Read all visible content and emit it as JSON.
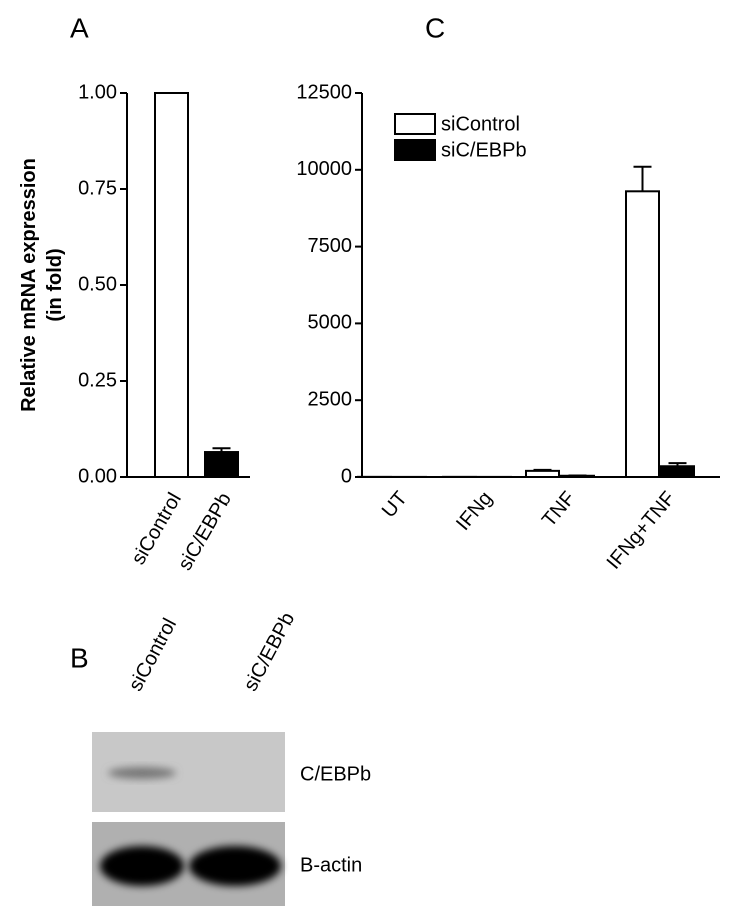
{
  "chart_data": [
    {
      "type": "bar",
      "label": "A",
      "ylabel": [
        "Relative mRNA expression",
        "(in fold)"
      ],
      "categories": [
        "siControl",
        "siC/EBPb"
      ],
      "values": [
        1.0,
        0.065
      ],
      "errors": [
        0,
        0.01
      ],
      "colors": [
        "#ffffff",
        "#000000"
      ],
      "ylim": [
        0,
        1
      ],
      "yticks": [
        {
          "value": 0,
          "label": "0.00"
        },
        {
          "value": 0.25,
          "label": "0.25"
        },
        {
          "value": 0.5,
          "label": "0.50"
        },
        {
          "value": 0.75,
          "label": "0.75"
        },
        {
          "value": 1,
          "label": "1.00"
        }
      ]
    },
    {
      "type": "grouped-bar",
      "label": "C",
      "categories": [
        "UT",
        "IFNg",
        "TNF",
        "IFNg+TNF"
      ],
      "series": [
        {
          "name": "siControl",
          "color": "#ffffff",
          "values": [
            5,
            5,
            200,
            9300
          ],
          "errors": [
            0,
            0,
            30,
            800
          ]
        },
        {
          "name": "siC/EBPb",
          "color": "#000000",
          "values": [
            3,
            3,
            40,
            350
          ],
          "errors": [
            0,
            0,
            10,
            100
          ]
        }
      ],
      "ylim": [
        0,
        12500
      ],
      "yticks": [
        0,
        2500,
        5000,
        7500,
        10000,
        12500
      ],
      "legend": "upper-left"
    }
  ],
  "blot": {
    "label": "B",
    "lanes": [
      "siControl",
      "siC/EBPb"
    ],
    "bands": [
      "C/EBPb",
      "B-actin"
    ]
  }
}
